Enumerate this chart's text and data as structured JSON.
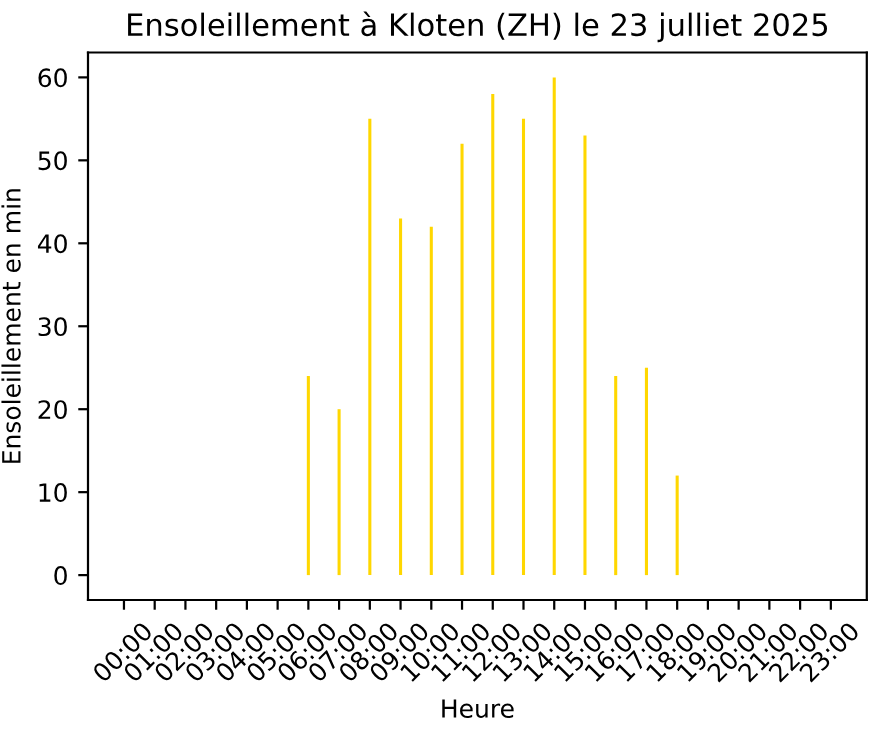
{
  "chart_data": {
    "type": "bar",
    "title": "Ensoleillement à Kloten (ZH) le 23 julliet 2025",
    "xlabel": "Heure",
    "ylabel": "Ensoleillement en min",
    "categories": [
      "00:00",
      "01:00",
      "02:00",
      "03:00",
      "04:00",
      "05:00",
      "06:00",
      "07:00",
      "08:00",
      "09:00",
      "10:00",
      "11:00",
      "12:00",
      "13:00",
      "14:00",
      "15:00",
      "16:00",
      "17:00",
      "18:00",
      "19:00",
      "20:00",
      "21:00",
      "22:00",
      "23:00"
    ],
    "values": [
      0,
      0,
      0,
      0,
      0,
      0,
      24,
      20,
      55,
      43,
      42,
      52,
      58,
      55,
      60,
      53,
      24,
      25,
      12,
      0,
      0,
      0,
      0,
      0
    ],
    "color": "#ffd700",
    "ylim": [
      -3,
      63
    ],
    "yticks": [
      0,
      10,
      20,
      30,
      40,
      50,
      60
    ],
    "grid": false
  }
}
